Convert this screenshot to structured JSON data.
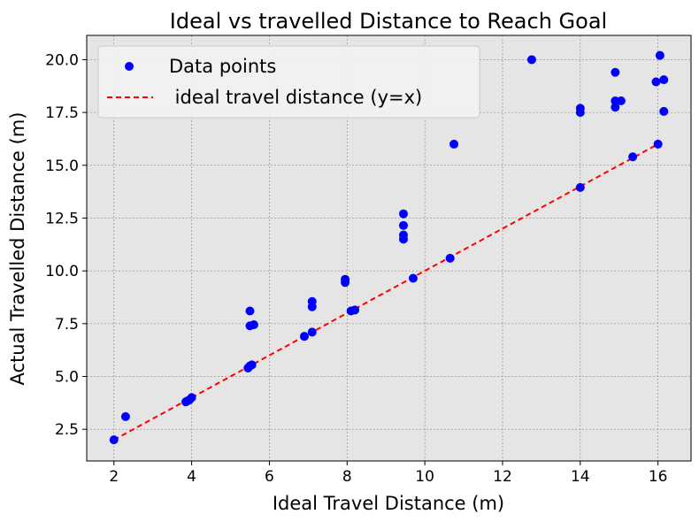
{
  "chart_data": {
    "type": "scatter",
    "title": "Ideal vs travelled Distance to Reach Goal",
    "xlabel": "Ideal Travel Distance (m)",
    "ylabel": "Actual Travelled Distance (m)",
    "xlim": [
      1.3,
      16.85
    ],
    "ylim": [
      1.0,
      21.15
    ],
    "xticks": [
      2,
      4,
      6,
      8,
      10,
      12,
      14,
      16
    ],
    "yticks": [
      2.5,
      5.0,
      7.5,
      10.0,
      12.5,
      15.0,
      17.5,
      20.0
    ],
    "xtick_labels": [
      "2",
      "4",
      "6",
      "8",
      "10",
      "12",
      "14",
      "16"
    ],
    "ytick_labels": [
      "2.5",
      "5.0",
      "7.5",
      "10.0",
      "12.5",
      "15.0",
      "17.5",
      "20.0"
    ],
    "grid": true,
    "legend": {
      "position": "top-left",
      "entries": [
        "Data points",
        " ideal travel distance (y=x)"
      ]
    },
    "series": [
      {
        "name": "Data points",
        "kind": "scatter",
        "color": "#0000ff",
        "points": [
          [
            2.0,
            2.0
          ],
          [
            2.3,
            3.1
          ],
          [
            3.85,
            3.8
          ],
          [
            3.9,
            3.85
          ],
          [
            3.95,
            3.9
          ],
          [
            4.0,
            4.0
          ],
          [
            5.45,
            5.4
          ],
          [
            5.5,
            5.5
          ],
          [
            5.55,
            5.55
          ],
          [
            5.5,
            8.1
          ],
          [
            5.5,
            7.4
          ],
          [
            5.6,
            7.45
          ],
          [
            6.9,
            6.9
          ],
          [
            7.1,
            7.1
          ],
          [
            7.1,
            8.55
          ],
          [
            7.1,
            8.3
          ],
          [
            7.95,
            9.6
          ],
          [
            7.95,
            9.45
          ],
          [
            8.1,
            8.1
          ],
          [
            8.2,
            8.15
          ],
          [
            9.45,
            12.7
          ],
          [
            9.45,
            12.15
          ],
          [
            9.45,
            11.7
          ],
          [
            9.45,
            11.5
          ],
          [
            9.7,
            9.65
          ],
          [
            10.65,
            10.6
          ],
          [
            10.75,
            16.0
          ],
          [
            12.75,
            20.0
          ],
          [
            14.0,
            13.95
          ],
          [
            14.0,
            17.7
          ],
          [
            14.0,
            17.5
          ],
          [
            14.9,
            19.4
          ],
          [
            14.9,
            18.05
          ],
          [
            14.9,
            17.75
          ],
          [
            15.05,
            18.05
          ],
          [
            15.35,
            15.4
          ],
          [
            15.95,
            18.95
          ],
          [
            16.0,
            16.0
          ],
          [
            16.05,
            20.2
          ],
          [
            16.15,
            19.05
          ],
          [
            16.15,
            17.55
          ]
        ]
      },
      {
        "name": " ideal travel distance (y=x)",
        "kind": "line",
        "style": "dashed",
        "color": "#ff0000",
        "points": [
          [
            2.0,
            2.0
          ],
          [
            16.0,
            16.0
          ]
        ]
      }
    ]
  }
}
